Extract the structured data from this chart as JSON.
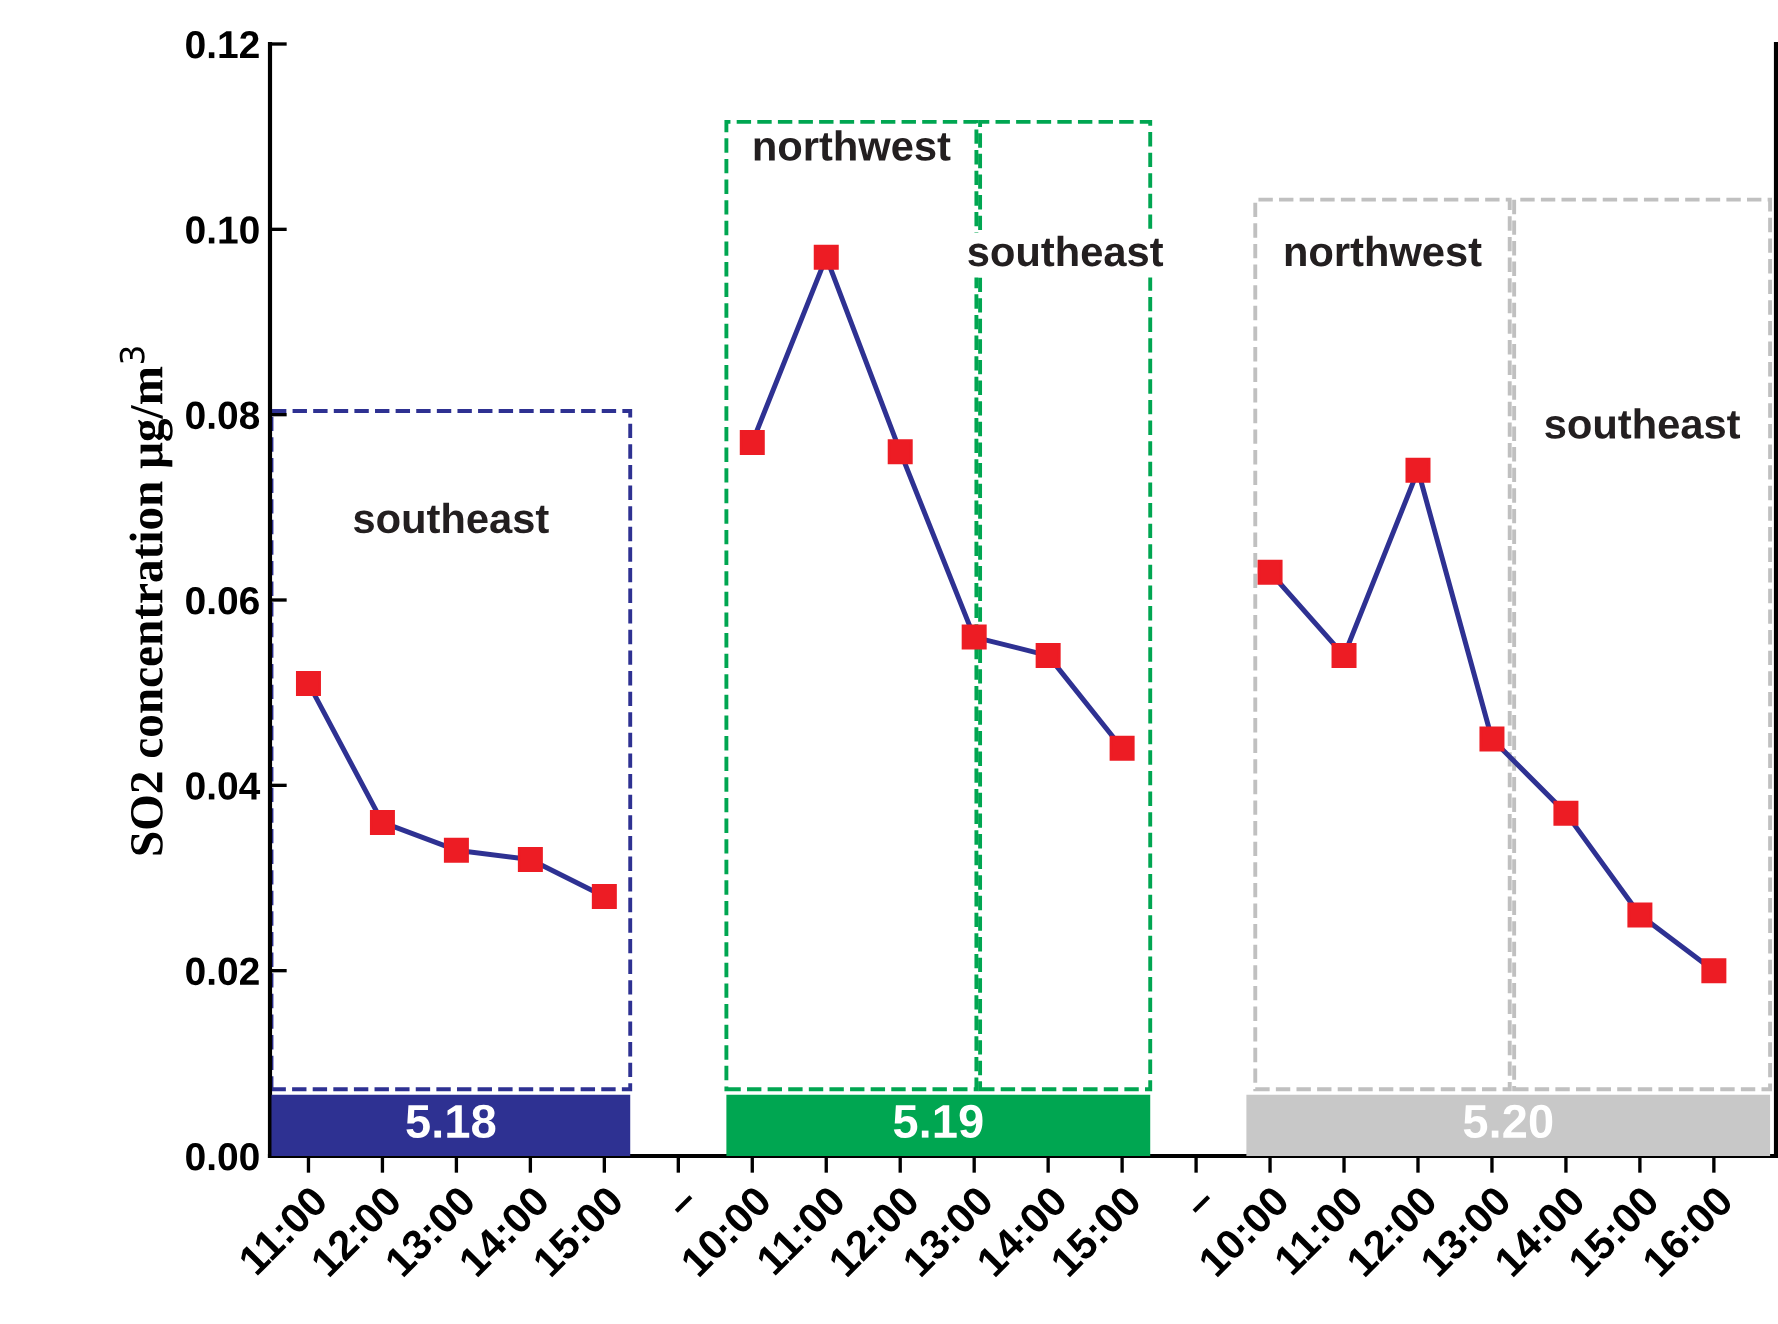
{
  "chart_data": {
    "type": "line",
    "ylabel": "SO2 concentration μg/m$^{3}$",
    "categories": [
      "11:00",
      "12:00",
      "13:00",
      "14:00",
      "15:00",
      "–",
      "10:00",
      "11:00",
      "12:00",
      "13:00",
      "14:00",
      "15:00",
      "–",
      "10:00",
      "11:00",
      "12:00",
      "13:00",
      "14:00",
      "15:00",
      "16:00"
    ],
    "series": [
      {
        "color": "#2e3192",
        "values": [
          0.051,
          0.036,
          0.033,
          0.032,
          0.028,
          null,
          0.077,
          0.097,
          0.076,
          0.056,
          0.054,
          0.044,
          null,
          0.063,
          0.054,
          0.074,
          0.045,
          0.037,
          0.026,
          0.02
        ]
      }
    ],
    "marker": "square",
    "line_style": "solid",
    "grid": false,
    "legend": false,
    "ylim": [
      0,
      0.12
    ],
    "yticks": [
      {
        "value": 0,
        "label": "0.00"
      },
      {
        "value": 0.02,
        "label": "0.02"
      },
      {
        "value": 0.04,
        "label": "0.04"
      },
      {
        "value": 0.06,
        "label": "0.06"
      },
      {
        "value": 0.08,
        "label": "0.08"
      },
      {
        "value": 0.1,
        "label": "0.10"
      },
      {
        "value": 0.12,
        "label": "0.12"
      }
    ],
    "annotations": [
      "southeast",
      "northwest",
      "southeast",
      "northwest",
      "southeast",
      "5.18",
      "5.19",
      "5.20"
    ]
  }
}
